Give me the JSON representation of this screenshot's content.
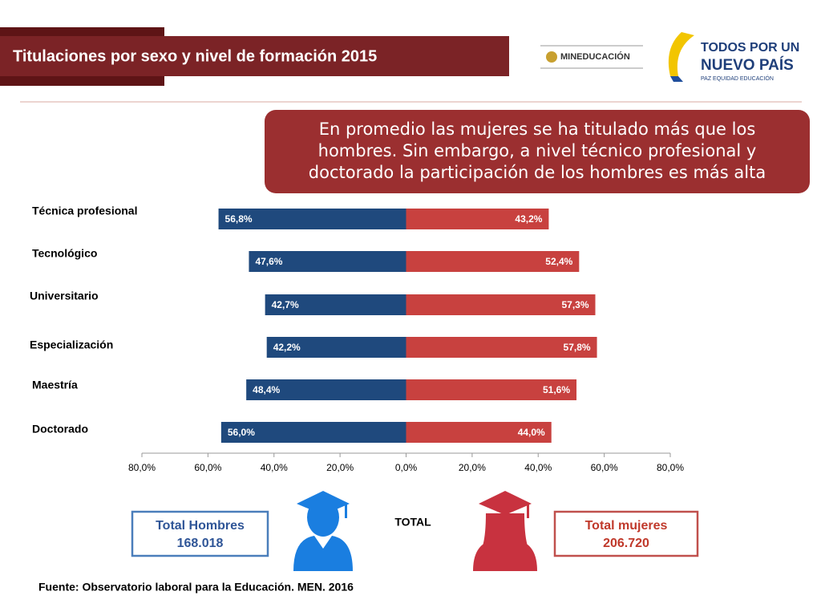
{
  "header": {
    "logo_ministry": "MINEDUCACIÓN",
    "logo_line1": "TODOS POR UN",
    "logo_line2": "NUEVO PAÍS",
    "logo_tagline": "PAZ  EQUIDAD  EDUCACIÓN"
  },
  "chart_data": {
    "type": "diverging-bar",
    "title": "Titulaciones por sexo y nivel de formación 2015",
    "annotation": [
      "En promedio las mujeres se ha titulado más que los",
      "hombres. Sin embargo, a nivel técnico profesional y",
      "doctorado la participación de los hombres es más alta"
    ],
    "categories": [
      "Técnica profesional",
      "Tecnológico",
      "Universitario",
      "Especialización",
      "Maestría",
      "Doctorado"
    ],
    "series": [
      {
        "color": "#1f497d",
        "values": [
          -56.8,
          -47.6,
          -42.7,
          -42.2,
          -48.4,
          -56.0
        ],
        "value_labels": [
          "56,8%",
          "47,6%",
          "42,7%",
          "42,2%",
          "48,4%",
          "56,0%"
        ]
      },
      {
        "color": "#c8413f",
        "values": [
          43.2,
          52.4,
          57.3,
          57.8,
          51.6,
          44.0
        ],
        "value_labels": [
          "43,2%",
          "52,4%",
          "57,3%",
          "57,8%",
          "51,6%",
          "44,0%"
        ]
      }
    ],
    "xlim": [
      -80,
      80
    ],
    "xticks": [
      {
        "value": -80,
        "label": "80,0%"
      },
      {
        "value": -60,
        "label": "60,0%"
      },
      {
        "value": -40,
        "label": "40,0%"
      },
      {
        "value": -20,
        "label": "20,0%"
      },
      {
        "value": 0,
        "label": "0,0%"
      },
      {
        "value": 20,
        "label": "20,0%"
      },
      {
        "value": 40,
        "label": "40,0%"
      },
      {
        "value": 60,
        "label": "60,0%"
      },
      {
        "value": 80,
        "label": "80,0%"
      }
    ],
    "total_label": "TOTAL",
    "totals": [
      {
        "label": "Total Hombres",
        "value": "168.018",
        "color": "#4a7ebb"
      },
      {
        "label": "Total mujeres",
        "value": "206.720",
        "color": "#c0504d"
      }
    ]
  },
  "source": "Fuente: Observatorio laboral para la Educación. MEN. 2016"
}
